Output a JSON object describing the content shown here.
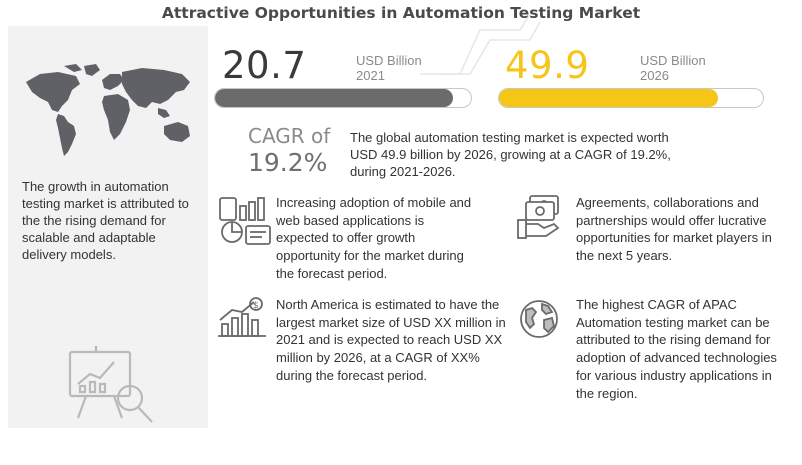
{
  "title": "Attractive Opportunities in Automation Testing Market",
  "left_panel": {
    "text": "The growth in automation testing market is attributed to the the rising demand for scalable and adaptable delivery models."
  },
  "stats": {
    "start": {
      "value": "20.7",
      "unit": "USD Billion",
      "year": "2021",
      "bar_fill_fraction": 0.93,
      "color": "#6b6b6b"
    },
    "end": {
      "value": "49.9",
      "unit": "USD Billion",
      "year": "2026",
      "bar_fill_fraction": 0.83,
      "color": "#f5c518"
    }
  },
  "cagr": {
    "label": "CAGR of",
    "value": "19.2%",
    "text": "The global automation testing market is expected worth USD 49.9 billion by 2026, growing at a CAGR of 19.2%, during 2021-2026."
  },
  "items": [
    {
      "text": "Increasing adoption of mobile and web based applications is expected to offer growth opportunity for the market during the forecast period.",
      "icon": "mobile-web-analytics-icon"
    },
    {
      "text": "Agreements, collaborations and partnerships would offer lucrative opportunities for market players in the next 5 years.",
      "icon": "money-handshake-icon"
    },
    {
      "text": "North America is estimated to have the largest market size of USD XX million in 2021 and is expected to reach USD XX million by 2026, at a CAGR of XX% during the forecast period.",
      "icon": "growth-chart-icon"
    },
    {
      "text": "The highest CAGR of APAC Automation testing market can be attributed to the rising demand for adoption of advanced technologies for various industry applications in the region.",
      "icon": "globe-icon"
    }
  ]
}
